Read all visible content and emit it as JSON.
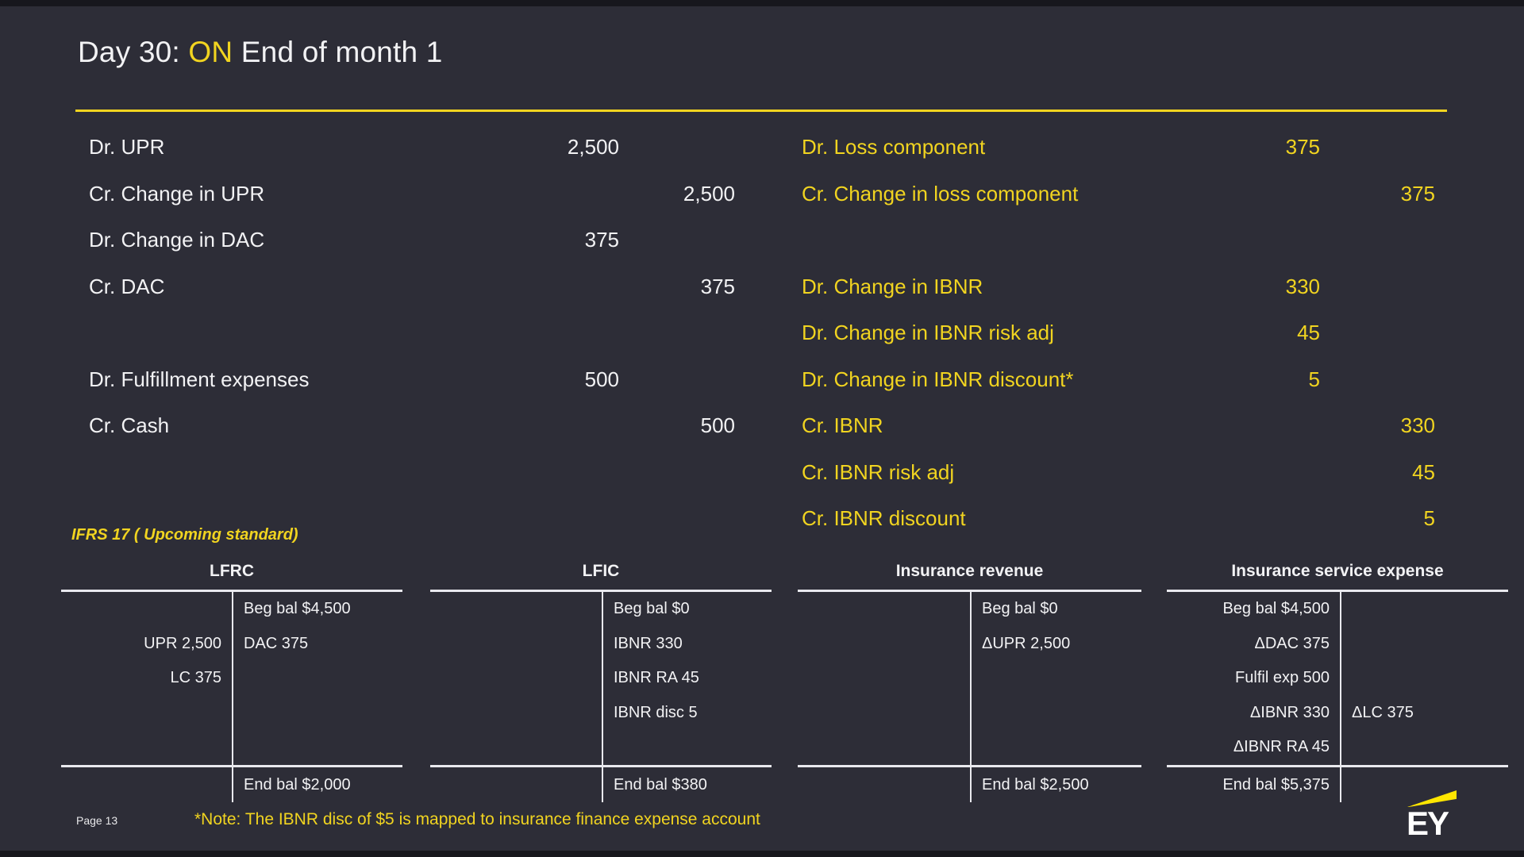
{
  "colors": {
    "background": "#2d2d37",
    "accent_yellow": "#f1d420",
    "text_white": "#f2f2f4",
    "logo_beam_yellow": "#ffe600"
  },
  "title": {
    "prefix": "Day 30: ",
    "highlight": "ON",
    "suffix": " End of month 1"
  },
  "journals": {
    "current_standard": {
      "rows": [
        {
          "label": "Dr. UPR",
          "debit": "2,500",
          "credit": ""
        },
        {
          "label": "Cr. Change in UPR",
          "debit": "",
          "credit": "2,500"
        },
        {
          "label": "Dr. Change in DAC",
          "debit": "375",
          "credit": ""
        },
        {
          "label": "Cr. DAC",
          "debit": "",
          "credit": "375"
        },
        {
          "label": "",
          "debit": "",
          "credit": ""
        },
        {
          "label": "Dr. Fulfillment expenses",
          "debit": "500",
          "credit": ""
        },
        {
          "label": "Cr. Cash",
          "debit": "",
          "credit": "500"
        }
      ]
    },
    "ifrs17": {
      "rows": [
        {
          "label": "Dr. Loss component",
          "debit": "375",
          "credit": ""
        },
        {
          "label": "Cr. Change in loss component",
          "debit": "",
          "credit": "375"
        },
        {
          "label": "",
          "debit": "",
          "credit": ""
        },
        {
          "label": "Dr. Change in IBNR",
          "debit": "330",
          "credit": ""
        },
        {
          "label": "Dr. Change in IBNR risk adj",
          "debit": "45",
          "credit": ""
        },
        {
          "label": "Dr. Change in IBNR discount*",
          "debit": "5",
          "credit": ""
        },
        {
          "label": "Cr. IBNR",
          "debit": "",
          "credit": "330"
        },
        {
          "label": "Cr. IBNR risk adj",
          "debit": "",
          "credit": "45"
        },
        {
          "label": "Cr. IBNR discount",
          "debit": "",
          "credit": "5"
        }
      ]
    }
  },
  "ifrs_section_label": "IFRS 17 ( Upcoming standard)",
  "t_accounts": [
    {
      "title": "LFRC",
      "rows": [
        [
          "",
          "Beg bal $4,500"
        ],
        [
          "UPR 2,500",
          "DAC 375"
        ],
        [
          "LC 375",
          ""
        ],
        [
          "",
          ""
        ],
        [
          "",
          ""
        ]
      ],
      "end": [
        "",
        "End bal $2,000"
      ]
    },
    {
      "title": "LFIC",
      "rows": [
        [
          "",
          "Beg bal $0"
        ],
        [
          "",
          "IBNR 330"
        ],
        [
          "",
          "IBNR RA 45"
        ],
        [
          "",
          "IBNR disc 5"
        ],
        [
          "",
          ""
        ]
      ],
      "end": [
        "",
        "End bal $380"
      ]
    },
    {
      "title": "Insurance revenue",
      "rows": [
        [
          "",
          "Beg bal $0"
        ],
        [
          "",
          "ΔUPR 2,500"
        ],
        [
          "",
          ""
        ],
        [
          "",
          ""
        ],
        [
          "",
          ""
        ]
      ],
      "end": [
        "",
        "End bal $2,500"
      ]
    },
    {
      "title": "Insurance service expense",
      "rows": [
        [
          "Beg bal $4,500",
          ""
        ],
        [
          "ΔDAC 375",
          ""
        ],
        [
          "Fulfil exp 500",
          ""
        ],
        [
          "ΔIBNR 330",
          "ΔLC 375"
        ],
        [
          "ΔIBNR RA 45",
          ""
        ]
      ],
      "end": [
        "End bal $5,375",
        ""
      ]
    }
  ],
  "footer": {
    "page_label": "Page 13",
    "note": "*Note: The IBNR disc of $5 is mapped to insurance finance expense account"
  },
  "logo": {
    "text": "EY"
  }
}
